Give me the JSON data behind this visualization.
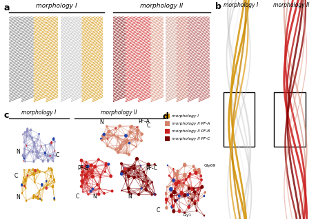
{
  "panel_a_label": "a",
  "panel_b_label": "b",
  "panel_c_label": "c",
  "panel_d_label": "d",
  "morph1_label": "morphology I",
  "morph2_label": "morphology II",
  "morph1_color_main": "#D4950A",
  "morph1_color_dark": "#666666",
  "morph1_color_light": "#AAAAAA",
  "morph2_color_A": "#D4826A",
  "morph2_color_B": "#CC2020",
  "morph2_color_C": "#7A0000",
  "morph2_color_light_A": "#C89080",
  "morph2_color_light_B": "#C06050",
  "legend_colors": [
    "#D4950A",
    "#D4826A",
    "#CC2020",
    "#7A0000"
  ],
  "legend_entries": [
    "morphology I",
    "morphology II PF-A",
    "morphology II PF-B",
    "morphology II PF-C"
  ],
  "gly_labels": [
    "Gly69",
    "Gly1"
  ],
  "bg_color": "#FFFFFF",
  "font_size_bold": 9,
  "font_size_label": 6.5,
  "font_size_small": 5.5
}
